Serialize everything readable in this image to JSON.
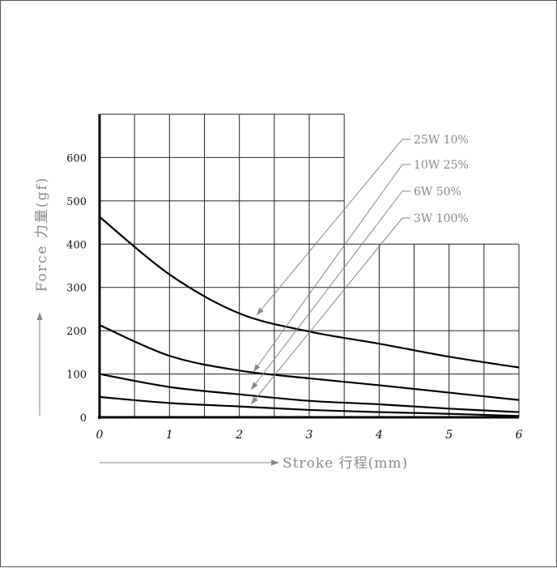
{
  "chart_data": {
    "type": "line",
    "title": "",
    "xlabel": "Stroke 行程(mm)",
    "ylabel": "Force 力量(gf)",
    "xlim": [
      0,
      6
    ],
    "ylim": [
      0,
      700
    ],
    "x_ticks": [
      "0",
      "1",
      "2",
      "3",
      "4",
      "5",
      "6"
    ],
    "y_ticks": [
      "0",
      "100",
      "200",
      "300",
      "400",
      "500",
      "600"
    ],
    "grid": true,
    "legend_position": "top-right",
    "series": [
      {
        "name": "25W 10%",
        "x": [
          0,
          1,
          2,
          3,
          4,
          5,
          6
        ],
        "y": [
          463,
          330,
          240,
          198,
          170,
          140,
          115
        ]
      },
      {
        "name": "10W 25%",
        "x": [
          0,
          1,
          2,
          3,
          4,
          5,
          6
        ],
        "y": [
          213,
          142,
          108,
          90,
          74,
          57,
          40
        ]
      },
      {
        "name": "6W 50%",
        "x": [
          0,
          1,
          2,
          3,
          4,
          5,
          6
        ],
        "y": [
          100,
          70,
          53,
          38,
          30,
          20,
          12
        ]
      },
      {
        "name": "3W 100%",
        "x": [
          0,
          1,
          2,
          3,
          4,
          5,
          6
        ],
        "y": [
          47,
          33,
          25,
          17,
          12,
          8,
          3
        ]
      }
    ]
  }
}
